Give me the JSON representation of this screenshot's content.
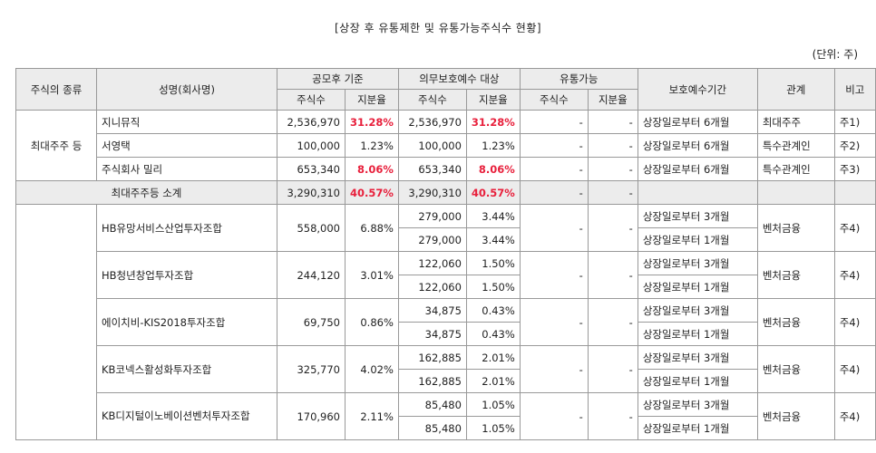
{
  "title": "[상장 후 유통제한 및 유통가능주식수 현황]",
  "unit": "(단위: 주)",
  "headers": {
    "type": "주식의 종류",
    "name": "성명(회사명)",
    "after_ipo": "공모후 기준",
    "mandatory": "의무보호예수 대상",
    "tradable": "유통가능",
    "period": "보호예수기간",
    "relation": "관계",
    "note": "비고",
    "shares": "주식수",
    "ratio": "지분율"
  },
  "group1": {
    "label": "최대주주 등",
    "rows": [
      {
        "name": "지니뮤직",
        "shares": "2,536,970",
        "ratio": "31.28%",
        "m_shares": "2,536,970",
        "m_ratio": "31.28%",
        "t_shares": "-",
        "t_ratio": "-",
        "period": "상장일로부터 6개월",
        "relation": "최대주주",
        "note": "주1)"
      },
      {
        "name": "서영택",
        "shares": "100,000",
        "ratio": "1.23%",
        "m_shares": "100,000",
        "m_ratio": "1.23%",
        "t_shares": "-",
        "t_ratio": "-",
        "period": "상장일로부터 6개월",
        "relation": "특수관계인",
        "note": "주2)"
      },
      {
        "name": "주식회사 밀리",
        "shares": "653,340",
        "ratio": "8.06%",
        "m_shares": "653,340",
        "m_ratio": "8.06%",
        "t_shares": "-",
        "t_ratio": "-",
        "period": "상장일로부터 6개월",
        "relation": "특수관계인",
        "note": "주3)"
      }
    ],
    "subtotal": {
      "label": "최대주주등 소계",
      "shares": "3,290,310",
      "ratio": "40.57%",
      "m_shares": "3,290,310",
      "m_ratio": "40.57%",
      "t_shares": "-",
      "t_ratio": "-"
    }
  },
  "group2": {
    "rows": [
      {
        "name": "HB유망서비스산업투자조합",
        "shares": "558,000",
        "ratio": "6.88%",
        "m1_shares": "279,000",
        "m1_ratio": "3.44%",
        "m2_shares": "279,000",
        "m2_ratio": "3.44%",
        "t_shares": "-",
        "t_ratio": "-",
        "period1": "상장일로부터 3개월",
        "period2": "상장일로부터 1개월",
        "relation": "벤처금융",
        "note": "주4)"
      },
      {
        "name": "HB청년창업투자조합",
        "shares": "244,120",
        "ratio": "3.01%",
        "m1_shares": "122,060",
        "m1_ratio": "1.50%",
        "m2_shares": "122,060",
        "m2_ratio": "1.50%",
        "t_shares": "-",
        "t_ratio": "-",
        "period1": "상장일로부터 3개월",
        "period2": "상장일로부터 1개월",
        "relation": "벤처금융",
        "note": "주4)"
      },
      {
        "name": "에이치비-KIS2018투자조합",
        "shares": "69,750",
        "ratio": "0.86%",
        "m1_shares": "34,875",
        "m1_ratio": "0.43%",
        "m2_shares": "34,875",
        "m2_ratio": "0.43%",
        "t_shares": "-",
        "t_ratio": "-",
        "period1": "상장일로부터 3개월",
        "period2": "상장일로부터 1개월",
        "relation": "벤처금융",
        "note": "주4)"
      },
      {
        "name": "KB코넥스활성화투자조합",
        "shares": "325,770",
        "ratio": "4.02%",
        "m1_shares": "162,885",
        "m1_ratio": "2.01%",
        "m2_shares": "162,885",
        "m2_ratio": "2.01%",
        "t_shares": "-",
        "t_ratio": "-",
        "period1": "상장일로부터 3개월",
        "period2": "상장일로부터 1개월",
        "relation": "벤처금융",
        "note": "주4)"
      },
      {
        "name": "KB디지털이노베이션벤처투자조합",
        "shares": "170,960",
        "ratio": "2.11%",
        "m1_shares": "85,480",
        "m1_ratio": "1.05%",
        "m2_shares": "85,480",
        "m2_ratio": "1.05%",
        "t_shares": "-",
        "t_ratio": "-",
        "period1": "상장일로부터 3개월",
        "period2": "상장일로부터 1개월",
        "relation": "벤처금융",
        "note": "주4)"
      }
    ]
  }
}
